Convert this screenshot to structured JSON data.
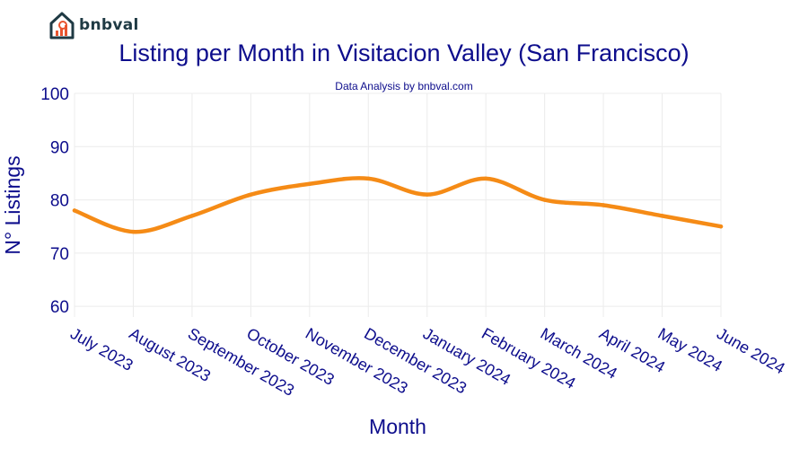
{
  "logo": {
    "text": "bnbval",
    "icon": "house-chart-icon",
    "color": "#1f3a44",
    "accent": "#e8542f"
  },
  "chart_data": {
    "type": "line",
    "title": "Listing per Month in Visitacion Valley (San Francisco)",
    "subtitle": "Data Analysis by bnbval.com",
    "xlabel": "Month",
    "ylabel": "N° Listings",
    "categories": [
      "July 2023",
      "August 2023",
      "September 2023",
      "October 2023",
      "November 2023",
      "December 2023",
      "January 2024",
      "February 2024",
      "March 2024",
      "April 2024",
      "May 2024",
      "June 2024"
    ],
    "series": [
      {
        "values": [
          78,
          74,
          77,
          81,
          83,
          84,
          81,
          84,
          80,
          79,
          77,
          75
        ],
        "color": "#f58b16"
      }
    ],
    "ylim": [
      58,
      100
    ],
    "yticks": [
      60,
      70,
      80,
      90,
      100
    ],
    "grid": true,
    "text_color": "#0d0d8c"
  }
}
